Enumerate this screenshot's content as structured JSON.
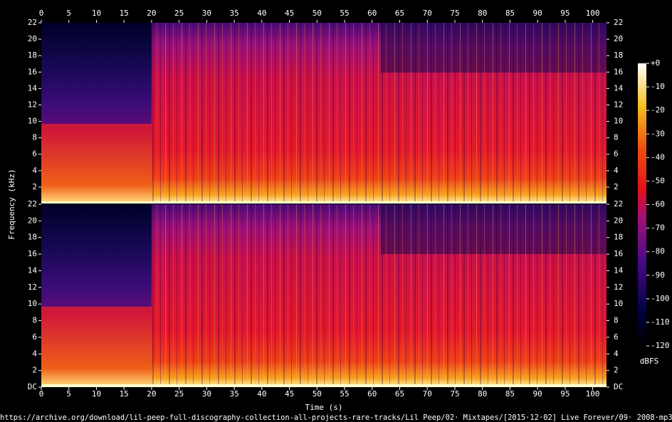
{
  "chart_data": [
    {
      "type": "spectrogram",
      "ylabel": "Frequency (kHz)",
      "xlim": [
        0,
        102.5
      ],
      "xticks": [
        0,
        5,
        10,
        15,
        20,
        25,
        30,
        35,
        40,
        45,
        50,
        55,
        60,
        65,
        70,
        75,
        80,
        85,
        90,
        95,
        100
      ],
      "ylim": [
        0,
        22
      ],
      "yticks": [
        2,
        4,
        6,
        8,
        10,
        12,
        14,
        16,
        18,
        20,
        22
      ],
      "colorbar": {
        "label": "dBFS",
        "lim": [
          -120,
          0
        ],
        "ticks": [
          {
            "value": 0,
            "label": "+0"
          },
          -10,
          -20,
          -30,
          -40,
          -50,
          -60,
          -70,
          -80,
          -90,
          -100,
          -110,
          -120
        ]
      }
    },
    {
      "type": "spectrogram",
      "xlabel": "Time (s)",
      "xlim": [
        0,
        102.5
      ],
      "xticks": [
        0,
        5,
        10,
        15,
        20,
        25,
        30,
        35,
        40,
        45,
        50,
        55,
        60,
        65,
        70,
        75,
        80,
        85,
        90,
        95,
        100
      ],
      "ylim": [
        0,
        22
      ],
      "yticks": [
        {
          "value": 0,
          "label": "DC"
        },
        2,
        4,
        6,
        8,
        10,
        12,
        14,
        16,
        18,
        20,
        22
      ]
    }
  ],
  "footer": "https://archive.org/download/lil-peep-full-discography-collection-all-projects-rare-tracks/Lil Peep/02· Mixtapes/[2015·12·02] Live Forever/09· 2008·mp3"
}
